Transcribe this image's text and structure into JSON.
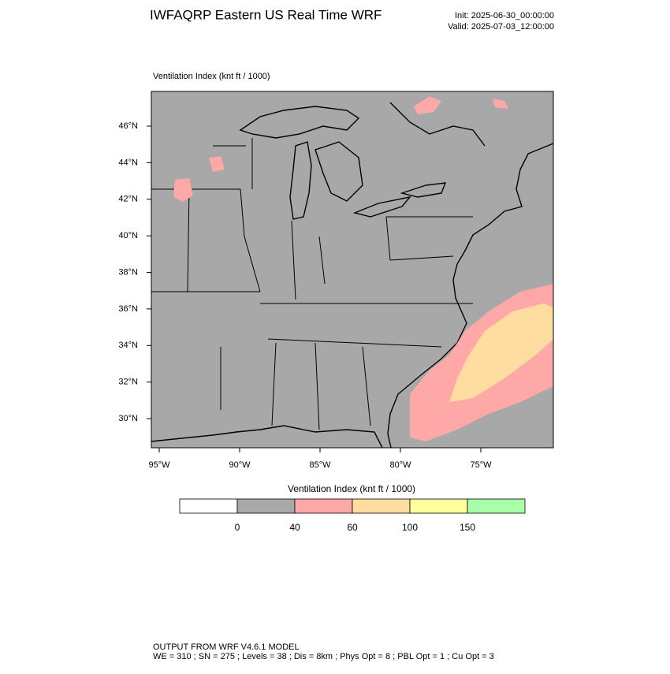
{
  "header": {
    "title": "IWFAQRP Eastern US Real Time WRF",
    "init": "Init: 2025-06-30_00:00:00",
    "valid": "Valid: 2025-07-03_12:00:00"
  },
  "map": {
    "title": "Ventilation Index   (knt ft / 1000)",
    "lat_ticks": [
      {
        "value": 46,
        "label": "46°N"
      },
      {
        "value": 44,
        "label": "44°N"
      },
      {
        "value": 42,
        "label": "42°N"
      },
      {
        "value": 40,
        "label": "40°N"
      },
      {
        "value": 38,
        "label": "38°N"
      },
      {
        "value": 36,
        "label": "36°N"
      },
      {
        "value": 34,
        "label": "34°N"
      },
      {
        "value": 32,
        "label": "32°N"
      },
      {
        "value": 30,
        "label": "30°N"
      }
    ],
    "lon_ticks": [
      {
        "value": -95,
        "label": "95°W"
      },
      {
        "value": -90,
        "label": "90°W"
      },
      {
        "value": -85,
        "label": "85°W"
      },
      {
        "value": -80,
        "label": "80°W"
      },
      {
        "value": -75,
        "label": "75°W"
      }
    ]
  },
  "colorbar": {
    "title": "Ventilation Index  (knt ft / 1000)",
    "colors": [
      "#ffffff",
      "#a8a8a8",
      "#ffa8a8",
      "#ffdca0",
      "#ffff9c",
      "#a8ffa8"
    ],
    "ticks": [
      0,
      40,
      60,
      100,
      150
    ]
  },
  "footer": {
    "line1": "OUTPUT FROM WRF V4.6.1 MODEL",
    "line2": "WE = 310 ; SN = 275 ; Levels = 38 ; Dis = 8km ; Phys Opt = 8 ; PBL Opt = 1 ; Cu Opt = 3"
  }
}
